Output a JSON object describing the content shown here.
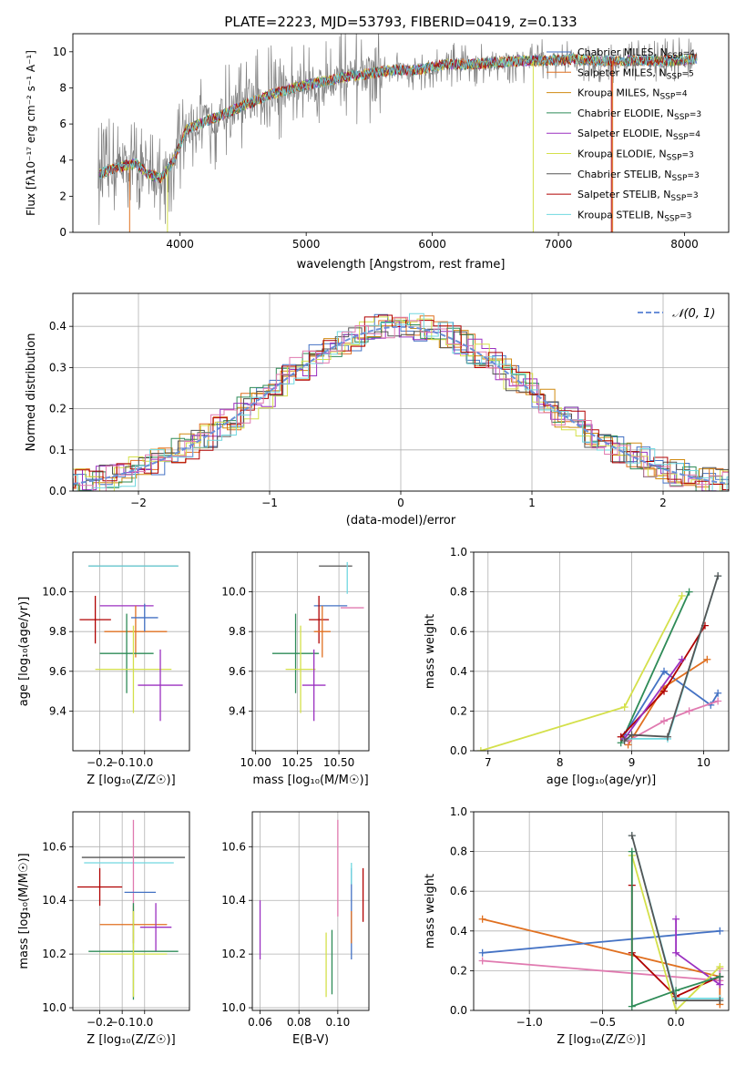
{
  "title": "PLATE=2223, MJD=53793, FIBERID=0419, z=0.133",
  "colors": {
    "Chabrier MILES": "#4472c4",
    "Salpeter MILES": "#e07020",
    "Kroupa MILES": "#d08a10",
    "Chabrier ELODIE": "#2e8b57",
    "Salpeter ELODIE": "#9b30c0",
    "Kroupa ELODIE": "#d4e04a",
    "Chabrier STELIB": "#555555",
    "Salpeter STELIB": "#b00000",
    "Kroupa STELIB": "#70d8e0",
    "model_alt": "#6a8fd8",
    "pink": "#e07ab0",
    "data": "#7f7f7f"
  },
  "chart_data": [
    {
      "id": "spectrum",
      "type": "line",
      "xlabel": "wavelength [Angstrom, rest frame]",
      "ylabel": "Flux [fλ10⁻¹⁷ erg cm⁻² s⁻¹ A⁻¹]",
      "xlim": [
        3150,
        8350
      ],
      "ylim": [
        0,
        11
      ],
      "xticks": [
        4000,
        5000,
        6000,
        7000,
        8000
      ],
      "yticks": [
        0,
        2,
        4,
        6,
        8,
        10
      ],
      "grid": false,
      "legend_position": "top-right",
      "legend": [
        "Chabrier MILES, N$_{SSP}$=4",
        "Salpeter MILES, N$_{SSP}$=5",
        "Kroupa MILES, N$_{SSP}$=4",
        "Chabrier ELODIE, N$_{SSP}$=3",
        "Salpeter ELODIE, N$_{SSP}$=4",
        "Kroupa ELODIE, N$_{SSP}$=3",
        "Chabrier STELIB, N$_{SSP}$=3",
        "Salpeter STELIB, N$_{SSP}$=3",
        "Kroupa STELIB, N$_{SSP}$=3"
      ],
      "continuum": {
        "x": [
          3350,
          3500,
          3650,
          3750,
          3850,
          3950,
          4050,
          4150,
          4300,
          4500,
          4700,
          4900,
          5100,
          5300,
          5500,
          5700,
          5900,
          6100,
          6300,
          6500,
          6700,
          6900,
          7100,
          7300,
          7500,
          7700,
          7900,
          8100
        ],
        "y": [
          3.2,
          3.6,
          3.8,
          3.2,
          3.0,
          4.0,
          5.7,
          6.0,
          6.4,
          7.0,
          7.6,
          8.0,
          8.3,
          8.6,
          8.8,
          9.0,
          9.0,
          9.3,
          9.3,
          9.4,
          9.5,
          9.5,
          9.6,
          9.5,
          9.5,
          9.5,
          9.5,
          9.6
        ]
      }
    },
    {
      "id": "residuals",
      "type": "histogram",
      "xlabel": "(data-model)/error",
      "ylabel": "Normed distribution",
      "xlim": [
        -2.5,
        2.5
      ],
      "ylim": [
        0,
        0.48
      ],
      "xticks": [
        -2,
        -1,
        0,
        1,
        2
      ],
      "yticks": [
        0.0,
        0.1,
        0.2,
        0.3,
        0.4
      ],
      "grid": true,
      "legend_position": "top-right",
      "legend_label": "𝒩(0, 1)",
      "normal": {
        "mu": 0,
        "sigma": 1
      }
    },
    {
      "id": "age_vs_Z",
      "type": "errorbar",
      "xlabel": "Z [log₁₀(Z/Z☉)]",
      "ylabel": "age  [log₁₀(age/yr)]",
      "xlim": [
        -0.32,
        0.2
      ],
      "ylim": [
        9.2,
        10.2
      ],
      "xticks": [
        -0.2,
        -0.1,
        0.0
      ],
      "yticks": [
        9.4,
        9.6,
        9.8,
        10.0
      ],
      "grid": true,
      "points": [
        {
          "series": "Chabrier STELIB",
          "x": -0.05,
          "xerr": 0.2,
          "y": 10.13,
          "yerr": 0.0
        },
        {
          "series": "Kroupa STELIB",
          "x": -0.05,
          "xerr": 0.2,
          "y": 10.13,
          "yerr": 0.0
        },
        {
          "series": "Salpeter ELODIE",
          "x": -0.08,
          "xerr": 0.12,
          "y": 9.93,
          "yerr": 0.0
        },
        {
          "series": "Salpeter STELIB",
          "x": -0.22,
          "xerr": 0.07,
          "y": 9.86,
          "yerr": 0.12
        },
        {
          "series": "Salpeter MILES",
          "x": -0.04,
          "xerr": 0.14,
          "y": 9.8,
          "yerr": 0.13
        },
        {
          "series": "Chabrier MILES",
          "x": 0.0,
          "xerr": 0.06,
          "y": 9.87,
          "yerr": 0.07
        },
        {
          "series": "Chabrier ELODIE",
          "x": -0.08,
          "xerr": 0.12,
          "y": 9.69,
          "yerr": 0.2
        },
        {
          "series": "Kroupa ELODIE",
          "x": -0.05,
          "xerr": 0.17,
          "y": 9.61,
          "yerr": 0.22
        },
        {
          "series": "Salpeter ELODIE",
          "x": 0.07,
          "xerr": 0.1,
          "y": 9.53,
          "yerr": 0.18
        }
      ]
    },
    {
      "id": "age_vs_mass",
      "type": "errorbar",
      "xlabel": "mass [log₁₀(M/M☉)]",
      "ylabel": "",
      "xlim": [
        9.98,
        10.68
      ],
      "ylim": [
        9.2,
        10.2
      ],
      "xticks": [
        10.0,
        10.25,
        10.5
      ],
      "yticks": [
        9.4,
        9.6,
        9.8,
        10.0
      ],
      "grid": true,
      "points": [
        {
          "series": "Chabrier STELIB",
          "x": 10.48,
          "xerr": 0.1,
          "y": 10.13,
          "yerr": 0.0
        },
        {
          "series": "Kroupa STELIB",
          "x": 10.55,
          "xerr": 0.0,
          "y": 10.07,
          "yerr": 0.08
        },
        {
          "series": "Chabrier MILES",
          "x": 10.45,
          "xerr": 0.1,
          "y": 9.93,
          "yerr": 0.0
        },
        {
          "series": "pink",
          "x": 10.58,
          "xerr": 0.07,
          "y": 9.92,
          "yerr": 0.0
        },
        {
          "series": "Salpeter STELIB",
          "x": 10.38,
          "xerr": 0.06,
          "y": 9.86,
          "yerr": 0.12
        },
        {
          "series": "Salpeter MILES",
          "x": 10.4,
          "xerr": 0.05,
          "y": 9.8,
          "yerr": 0.13
        },
        {
          "series": "Chabrier ELODIE",
          "x": 10.24,
          "xerr": 0.14,
          "y": 9.69,
          "yerr": 0.2
        },
        {
          "series": "Kroupa ELODIE",
          "x": 10.27,
          "xerr": 0.09,
          "y": 9.61,
          "yerr": 0.22
        },
        {
          "series": "Salpeter ELODIE",
          "x": 10.35,
          "xerr": 0.07,
          "y": 9.53,
          "yerr": 0.18
        }
      ]
    },
    {
      "id": "weight_vs_age",
      "type": "line",
      "xlabel": "age  [log₁₀(age/yr)]",
      "ylabel": "mass weight",
      "xlim": [
        6.8,
        10.35
      ],
      "ylim": [
        0,
        1.0
      ],
      "xticks": [
        7,
        8,
        9,
        10
      ],
      "yticks": [
        0.0,
        0.2,
        0.4,
        0.6,
        0.8,
        1.0
      ],
      "grid": true,
      "series": [
        {
          "name": "Kroupa ELODIE",
          "x": [
            6.9,
            8.9,
            9.7
          ],
          "y": [
            0.0,
            0.22,
            0.78
          ]
        },
        {
          "name": "Chabrier ELODIE",
          "x": [
            8.85,
            9.8
          ],
          "y": [
            0.04,
            0.8
          ]
        },
        {
          "name": "Chabrier MILES",
          "x": [
            8.9,
            9.45,
            10.1,
            10.2
          ],
          "y": [
            0.08,
            0.4,
            0.23,
            0.29
          ]
        },
        {
          "name": "Salpeter MILES",
          "x": [
            8.95,
            9.45,
            10.05
          ],
          "y": [
            0.03,
            0.32,
            0.46
          ]
        },
        {
          "name": "Salpeter STELIB",
          "x": [
            8.85,
            9.45,
            10.02
          ],
          "y": [
            0.07,
            0.3,
            0.63
          ]
        },
        {
          "name": "pink",
          "x": [
            8.95,
            9.45,
            9.8,
            10.2
          ],
          "y": [
            0.05,
            0.15,
            0.2,
            0.25
          ]
        },
        {
          "name": "Kroupa STELIB",
          "x": [
            8.9,
            9.5,
            10.2
          ],
          "y": [
            0.06,
            0.06,
            0.88
          ]
        },
        {
          "name": "Salpeter ELODIE",
          "x": [
            8.9,
            9.7
          ],
          "y": [
            0.06,
            0.46
          ]
        },
        {
          "name": "Chabrier STELIB",
          "x": [
            8.9,
            9.0,
            9.5,
            10.2
          ],
          "y": [
            0.05,
            0.08,
            0.07,
            0.88
          ]
        }
      ]
    },
    {
      "id": "mass_vs_Z",
      "type": "errorbar",
      "xlabel": "Z [log₁₀(Z/Z☉)]",
      "ylabel": "mass [log₁₀(M/M☉)]",
      "xlim": [
        -0.32,
        0.2
      ],
      "ylim": [
        9.99,
        10.73
      ],
      "xticks": [
        -0.2,
        -0.1,
        0.0
      ],
      "yticks": [
        10.0,
        10.2,
        10.4,
        10.6
      ],
      "grid": true,
      "points": [
        {
          "series": "Chabrier STELIB",
          "x": -0.05,
          "xerr": 0.23,
          "y": 10.56,
          "yerr": 0.0
        },
        {
          "series": "Kroupa STELIB",
          "x": -0.07,
          "xerr": 0.2,
          "y": 10.54,
          "yerr": 0.0
        },
        {
          "series": "pink",
          "x": -0.05,
          "xerr": 0.0,
          "y": 10.54,
          "yerr": 0.16
        },
        {
          "series": "Salpeter STELIB",
          "x": -0.2,
          "xerr": 0.1,
          "y": 10.45,
          "yerr": 0.07
        },
        {
          "series": "Chabrier MILES",
          "x": -0.02,
          "xerr": 0.07,
          "y": 10.43,
          "yerr": 0.0
        },
        {
          "series": "Salpeter MILES",
          "x": -0.05,
          "xerr": 0.15,
          "y": 10.31,
          "yerr": 0.07
        },
        {
          "series": "Salpeter ELODIE",
          "x": 0.05,
          "xerr": 0.07,
          "y": 10.3,
          "yerr": 0.09
        },
        {
          "series": "Chabrier ELODIE",
          "x": -0.05,
          "xerr": 0.2,
          "y": 10.21,
          "yerr": 0.18
        },
        {
          "series": "Kroupa ELODIE",
          "x": -0.05,
          "xerr": 0.15,
          "y": 10.2,
          "yerr": 0.16
        }
      ]
    },
    {
      "id": "mass_vs_EBV",
      "type": "errorbar",
      "xlabel": "E(B-V)",
      "ylabel": "",
      "xlim": [
        0.056,
        0.116
      ],
      "ylim": [
        9.99,
        10.73
      ],
      "xticks": [
        0.06,
        0.08,
        0.1
      ],
      "yticks": [
        10.0,
        10.2,
        10.4,
        10.6
      ],
      "grid": true,
      "points": [
        {
          "series": "Salpeter ELODIE",
          "x": 0.06,
          "y": 10.29,
          "yerr": 0.11
        },
        {
          "series": "Kroupa ELODIE",
          "x": 0.094,
          "y": 10.16,
          "yerr": 0.12
        },
        {
          "series": "Chabrier ELODIE",
          "x": 0.097,
          "y": 10.17,
          "yerr": 0.12
        },
        {
          "series": "pink",
          "x": 0.1,
          "y": 10.52,
          "yerr": 0.18
        },
        {
          "series": "Chabrier MILES",
          "x": 0.107,
          "y": 10.35,
          "yerr": 0.17
        },
        {
          "series": "Salpeter MILES",
          "x": 0.107,
          "y": 10.3,
          "yerr": 0.06
        },
        {
          "series": "Kroupa STELIB",
          "x": 0.107,
          "y": 10.5,
          "yerr": 0.04
        },
        {
          "series": "Salpeter STELIB",
          "x": 0.113,
          "y": 10.42,
          "yerr": 0.1
        }
      ]
    },
    {
      "id": "weight_vs_Z",
      "type": "line",
      "xlabel": "Z [log₁₀(Z/Z☉)]",
      "ylabel": "mass weight",
      "xlim": [
        -1.38,
        0.36
      ],
      "ylim": [
        0,
        1.0
      ],
      "xticks": [
        -1.0,
        -0.5,
        0.0
      ],
      "yticks": [
        0.0,
        0.2,
        0.4,
        0.6,
        0.8,
        1.0
      ],
      "grid": true,
      "series": [
        {
          "name": "Salpeter MILES",
          "x": [
            -1.32,
            0.3,
            0.3
          ],
          "y": [
            0.46,
            0.17,
            0.03
          ]
        },
        {
          "name": "Chabrier MILES",
          "x": [
            -1.32,
            0.3
          ],
          "y": [
            0.29,
            0.4
          ]
        },
        {
          "name": "pink",
          "x": [
            -1.32,
            0.3,
            0.3
          ],
          "y": [
            0.25,
            0.15,
            0.21
          ]
        },
        {
          "name": "Salpeter STELIB",
          "x": [
            -0.3,
            -0.3,
            0.0,
            0.3
          ],
          "y": [
            0.63,
            0.29,
            0.07,
            0.17
          ]
        },
        {
          "name": "Salpeter ELODIE",
          "x": [
            0.0,
            0.0,
            0.3,
            0.3
          ],
          "y": [
            0.46,
            0.29,
            0.13,
            0.17
          ]
        },
        {
          "name": "Kroupa ELODIE",
          "x": [
            -0.3,
            0.0,
            0.3
          ],
          "y": [
            0.78,
            0.0,
            0.22
          ]
        },
        {
          "name": "Chabrier ELODIE",
          "x": [
            -0.3,
            -0.3,
            0.0,
            0.3
          ],
          "y": [
            0.8,
            0.02,
            0.1,
            0.17
          ]
        },
        {
          "name": "Kroupa STELIB",
          "x": [
            -0.3,
            0.0,
            0.3
          ],
          "y": [
            0.88,
            0.06,
            0.06
          ]
        },
        {
          "name": "Chabrier STELIB",
          "x": [
            -0.3,
            0.0,
            0.3
          ],
          "y": [
            0.88,
            0.05,
            0.05
          ]
        }
      ]
    }
  ]
}
